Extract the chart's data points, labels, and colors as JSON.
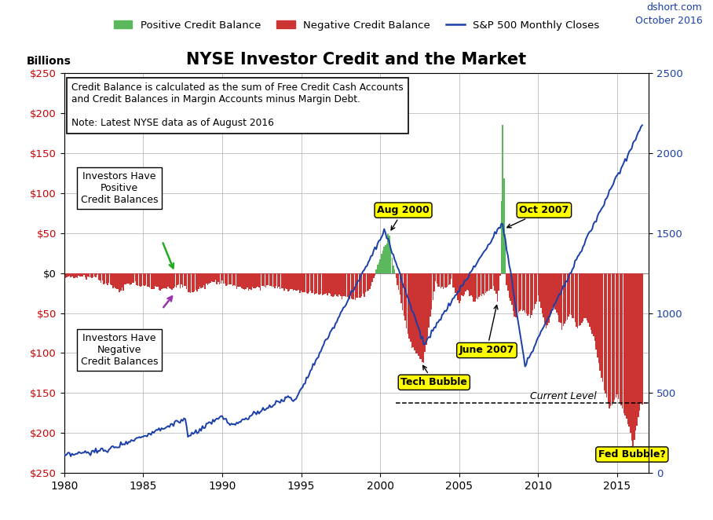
{
  "title": "NYSE Investor Credit and the Market",
  "watermark_line1": "dshort.com",
  "watermark_line2": "October 2016",
  "ylabel_left": "Billions",
  "legend_labels": [
    "Positive Credit Balance",
    "Negative Credit Balance",
    "S&P 500 Monthly Closes"
  ],
  "pos_color": "#5cb85c",
  "neg_color": "#cc3333",
  "sp500_color": "#1a3faa",
  "xlim": [
    1980,
    2017
  ],
  "ylim_left": [
    -250,
    250
  ],
  "ylim_right": [
    0,
    2500
  ],
  "yticks_left": [
    250,
    200,
    150,
    100,
    50,
    0,
    -50,
    -100,
    -150,
    -200,
    -250
  ],
  "ytick_labels_left": [
    "$250",
    "$200",
    "$150",
    "$100",
    "$50",
    "$0",
    "$50",
    "$100",
    "$150",
    "$200",
    "$250"
  ],
  "yticks_right": [
    0,
    500,
    1000,
    1500,
    2000,
    2500
  ],
  "xticks": [
    1980,
    1985,
    1990,
    1995,
    2000,
    2005,
    2010,
    2015
  ],
  "box_text_line1": "Credit Balance is calculated as the sum of Free Credit Cash Accounts",
  "box_text_line2": "and Credit Balances in Margin Accounts minus Margin Debt.",
  "box_text_line3": "Note: Latest NYSE data as of August 2016",
  "current_level": -162,
  "current_level_text": "Current Level",
  "background_color": "#ffffff",
  "grid_color": "#bbbbbb",
  "left_tick_color": "#cc0000",
  "right_tick_color": "#1a3faa"
}
